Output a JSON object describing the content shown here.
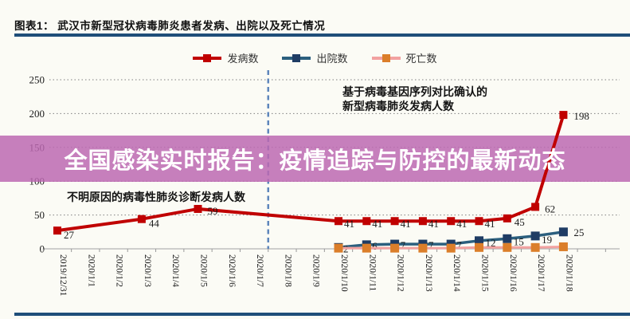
{
  "header": {
    "title": "图表1：  武汉市新型冠状病毒肺炎患者发病、出院以及死亡情况"
  },
  "banner": {
    "text": "全国感染实时报告：疫情追踪与防控的最新动态",
    "bg_color": "#BC69B2",
    "text_color": "#FFFFFF"
  },
  "rule_color": "#1F4E79",
  "chart_data": {
    "type": "line",
    "categories": [
      "2019/12/31",
      "2020/1/1",
      "2020/1/2",
      "2020/1/3",
      "2020/1/4",
      "2020/1/5",
      "2020/1/6",
      "2020/1/7",
      "2020/1/8",
      "2020/1/9",
      "2020/1/10",
      "2020/1/11",
      "2020/1/12",
      "2020/1/13",
      "2020/1/14",
      "2020/1/15",
      "2020/1/16",
      "2020/1/17",
      "2020/1/18"
    ],
    "ylim": [
      0,
      250
    ],
    "yticks": [
      0,
      50,
      100,
      150,
      200,
      250
    ],
    "grid": "horizontal dotted",
    "legend_position": "top-center",
    "series": [
      {
        "name": "发病数",
        "line_color": "#C00000",
        "marker_color": "#C00000",
        "points": [
          {
            "i": 0,
            "v": 27,
            "label": "27",
            "dx": 8,
            "dy": 10
          },
          {
            "i": 3,
            "v": 44,
            "label": "44",
            "dx": 9,
            "dy": 10
          },
          {
            "i": 5,
            "v": 59,
            "label": "59",
            "dx": 12,
            "dy": 7
          },
          {
            "i": 10,
            "v": 41,
            "label": "41",
            "dx": 7,
            "dy": 8
          },
          {
            "i": 11,
            "v": 41,
            "label": "41",
            "dx": 7,
            "dy": 8
          },
          {
            "i": 12,
            "v": 41,
            "label": "41",
            "dx": 7,
            "dy": 8
          },
          {
            "i": 13,
            "v": 41,
            "label": "41",
            "dx": 7,
            "dy": 8
          },
          {
            "i": 14,
            "v": 41,
            "label": "41",
            "dx": 7,
            "dy": 8
          },
          {
            "i": 15,
            "v": 41,
            "label": "41",
            "dx": 7,
            "dy": 8
          },
          {
            "i": 16,
            "v": 45,
            "label": "45",
            "dx": 9,
            "dy": 9
          },
          {
            "i": 17,
            "v": 62,
            "label": "62",
            "dx": 12,
            "dy": 7
          },
          {
            "i": 18,
            "v": 198,
            "label": "198",
            "dx": 13,
            "dy": 6
          }
        ]
      },
      {
        "name": "出院数",
        "line_color": "#2B5F7E",
        "marker_color": "#1F3C64",
        "points": [
          {
            "i": 10,
            "v": 2,
            "label": "2",
            "dx": 6,
            "dy": 6
          },
          {
            "i": 11,
            "v": 6,
            "label": "6",
            "dx": 7,
            "dy": 6
          },
          {
            "i": 12,
            "v": 7,
            "label": "7",
            "dx": 7,
            "dy": 6
          },
          {
            "i": 13,
            "v": 7,
            "label": "7",
            "dx": 7,
            "dy": 6
          },
          {
            "i": 14,
            "v": 7,
            "label": "7",
            "dx": 7,
            "dy": 6
          },
          {
            "i": 15,
            "v": 12,
            "label": "12",
            "dx": 8,
            "dy": 7
          },
          {
            "i": 16,
            "v": 15,
            "label": "15",
            "dx": 8,
            "dy": 8
          },
          {
            "i": 17,
            "v": 19,
            "label": "19",
            "dx": 8,
            "dy": 9
          },
          {
            "i": 18,
            "v": 25,
            "label": "25",
            "dx": 13,
            "dy": 5
          }
        ]
      },
      {
        "name": "死亡数",
        "line_color": "#F2A1A0",
        "marker_color": "#DB7E2A",
        "points": [
          {
            "i": 10,
            "v": 1
          },
          {
            "i": 11,
            "v": 1
          },
          {
            "i": 12,
            "v": 1
          },
          {
            "i": 13,
            "v": 1
          },
          {
            "i": 14,
            "v": 1
          },
          {
            "i": 15,
            "v": 2
          },
          {
            "i": 16,
            "v": 2
          },
          {
            "i": 17,
            "v": 2
          },
          {
            "i": 18,
            "v": 3
          }
        ]
      }
    ],
    "vline": {
      "between": [
        "2020/1/7",
        "2020/1/8"
      ],
      "style": "dashed",
      "color": "#5E86BC"
    },
    "annotations": [
      {
        "text": "不明原因的病毒性肺炎诊断发病人数"
      },
      {
        "lines": [
          "基于病毒基因序列对比确认的",
          "新型病毒肺炎发病人数"
        ]
      }
    ]
  }
}
